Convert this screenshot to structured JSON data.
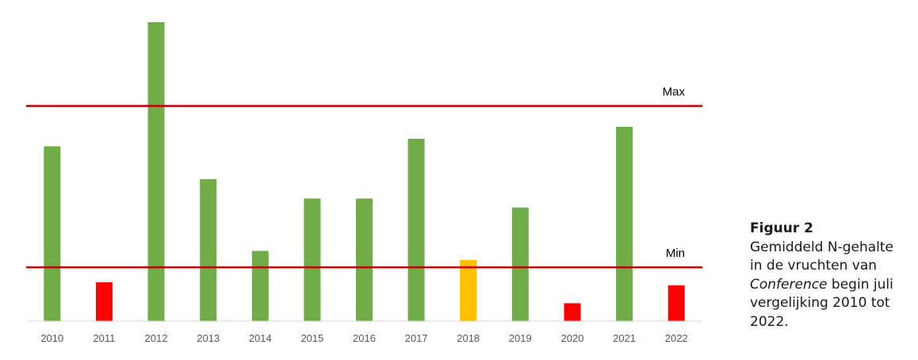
{
  "chart_data": {
    "type": "bar",
    "title": "",
    "xlabel": "",
    "ylabel": "",
    "ylim": [
      0,
      100
    ],
    "grid": false,
    "categories": [
      "2010",
      "2011",
      "2012",
      "2013",
      "2014",
      "2015",
      "2016",
      "2017",
      "2018",
      "2019",
      "2020",
      "2021",
      "2022"
    ],
    "values": [
      58.5,
      13,
      100,
      47.5,
      23.5,
      41,
      41,
      61,
      20.5,
      38,
      6,
      65,
      12
    ],
    "bar_colors": [
      "#70ad47",
      "#ff0000",
      "#70ad47",
      "#70ad47",
      "#70ad47",
      "#70ad47",
      "#70ad47",
      "#70ad47",
      "#ffc000",
      "#70ad47",
      "#ff0000",
      "#70ad47",
      "#ff0000"
    ],
    "reference_lines": [
      {
        "label": "Max",
        "value": 72,
        "color": "#c00000"
      },
      {
        "label": "Min",
        "value": 18,
        "color": "#c00000"
      }
    ]
  },
  "caption": {
    "title": "Figuur 2",
    "line1": "Gemiddeld N-gehalte",
    "line2": "in de vruchten van",
    "line3_italic": "Conference",
    "line3_rest": " begin juli",
    "line4": "vergelijking 2010 tot",
    "line5": "2022."
  }
}
